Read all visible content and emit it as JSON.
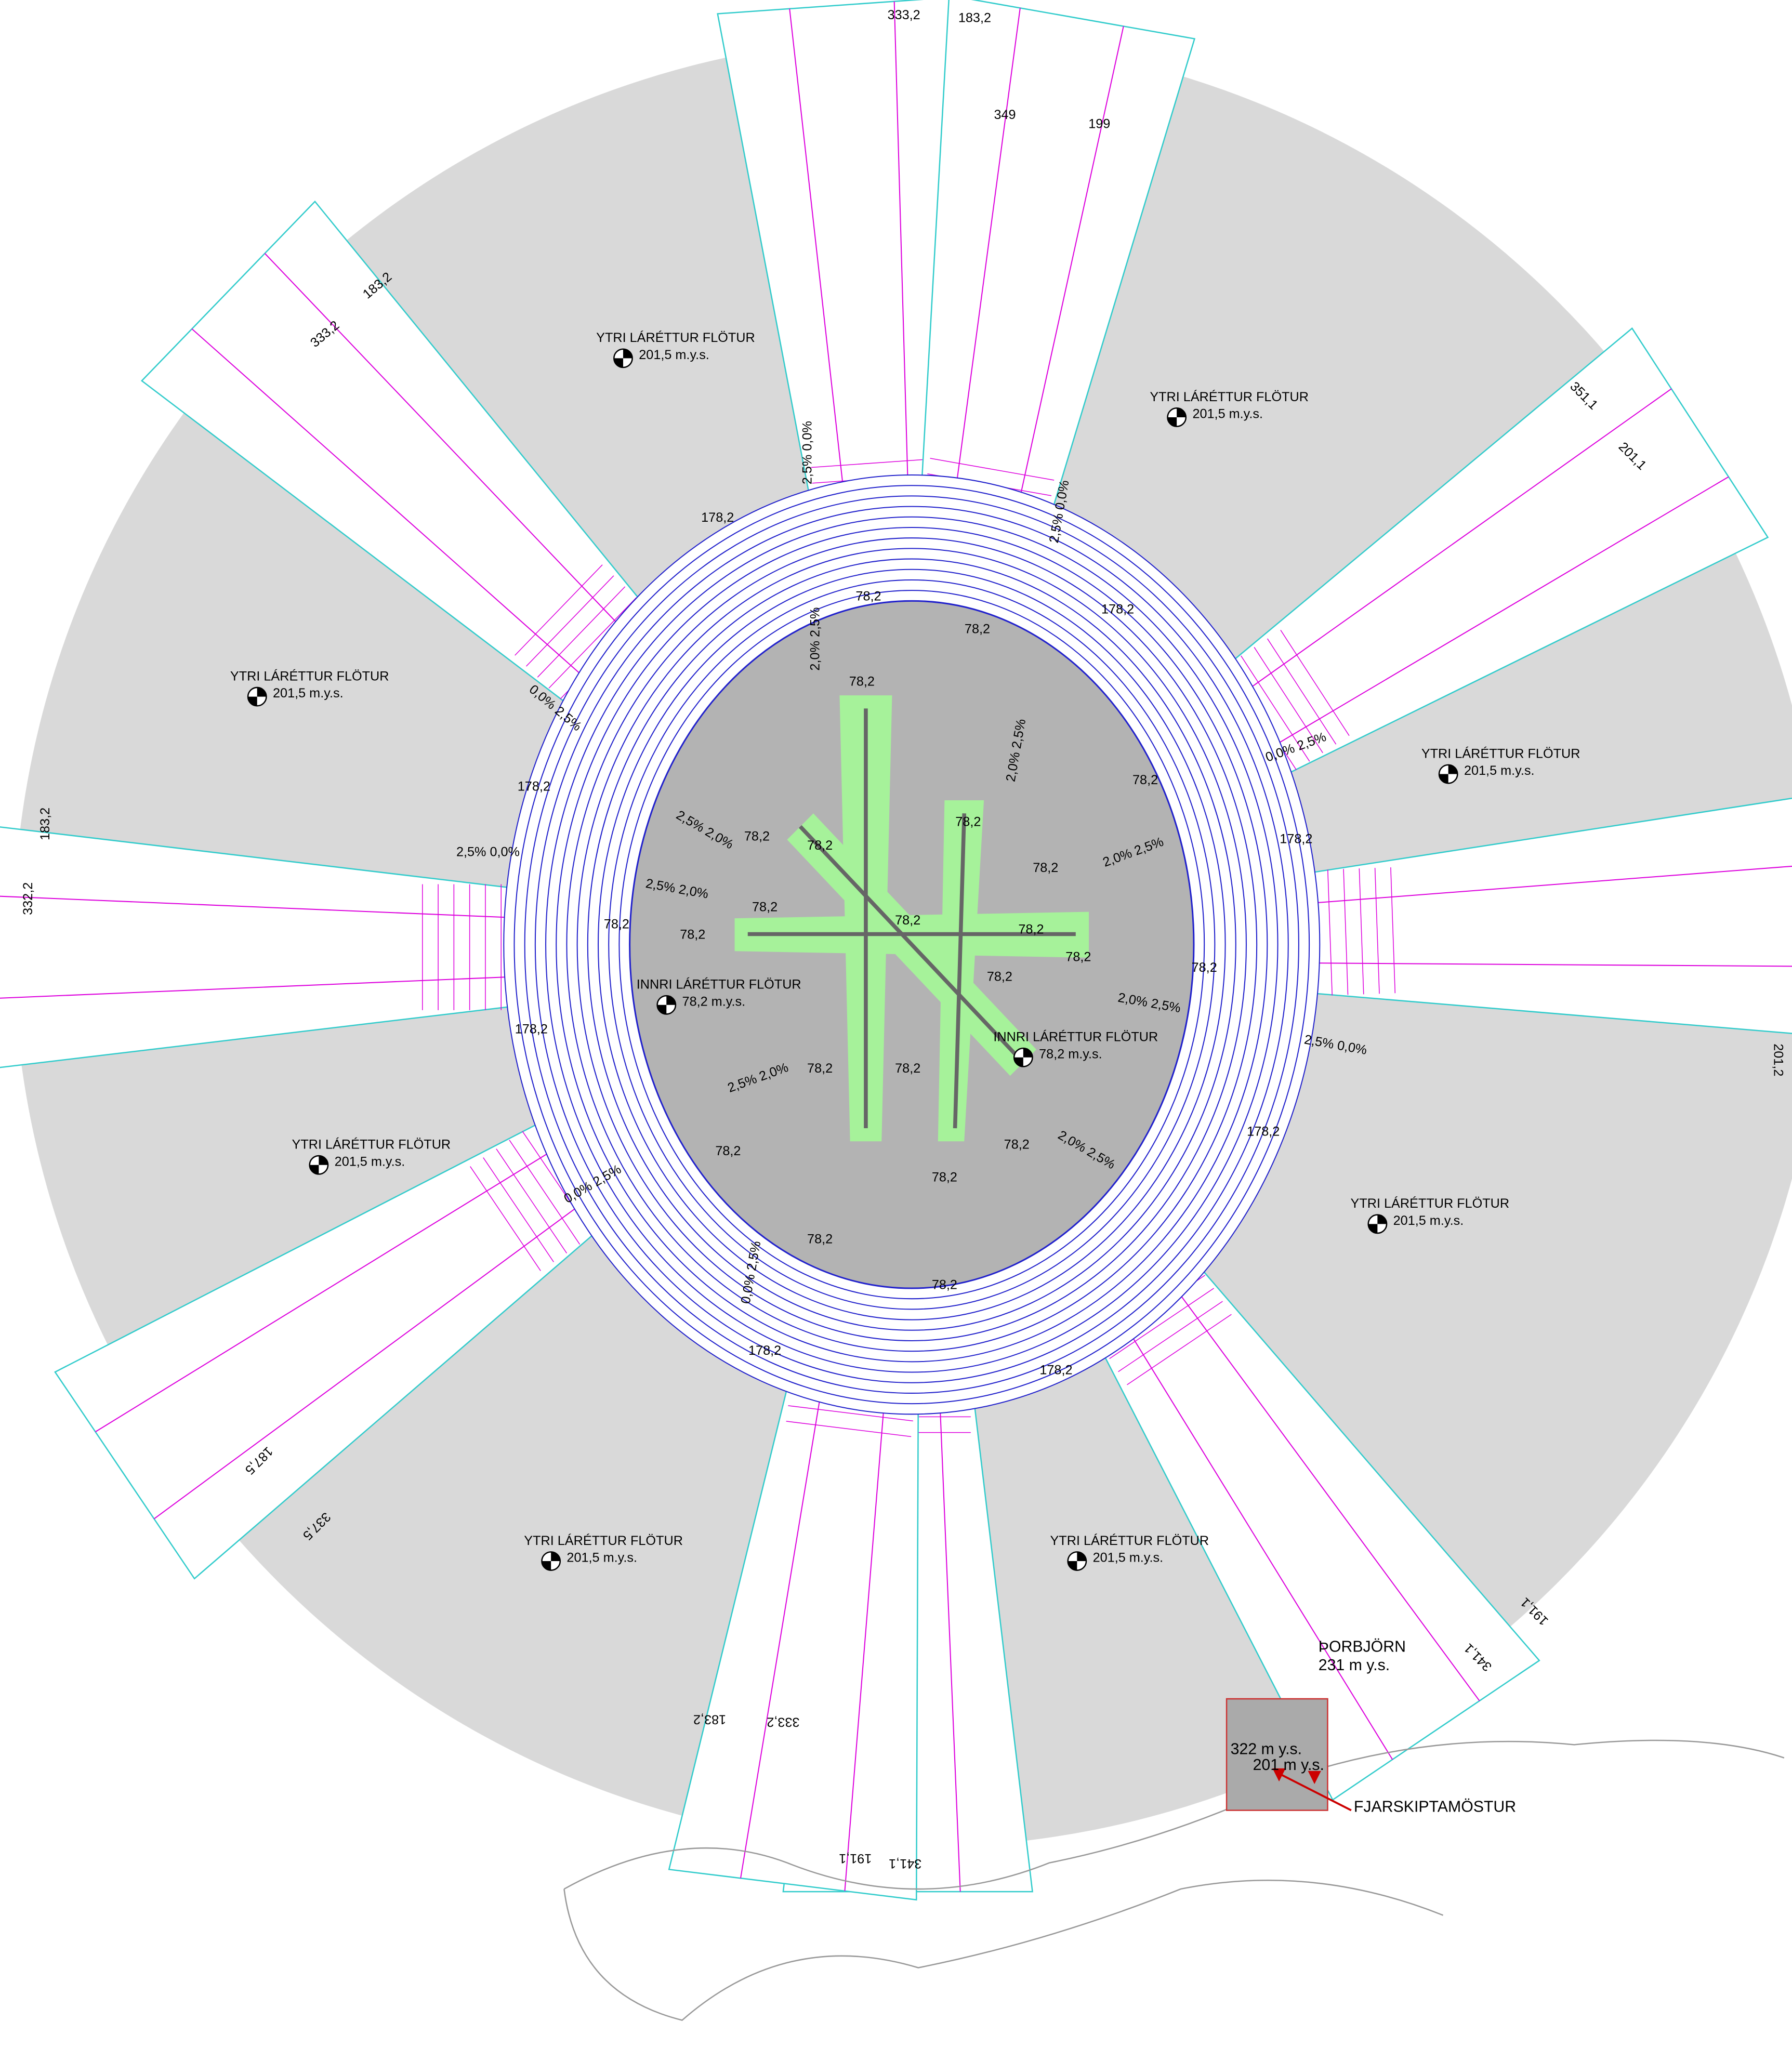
{
  "outer_surfaces": [
    {
      "title": "YTRI LÁRÉTTUR FLÖTUR",
      "elevation": "201,5 m.y.s."
    },
    {
      "title": "YTRI LÁRÉTTUR FLÖTUR",
      "elevation": "201,5 m.y.s."
    },
    {
      "title": "YTRI LÁRÉTTUR FLÖTUR",
      "elevation": "201,5 m.y.s."
    },
    {
      "title": "YTRI LÁRÉTTUR FLÖTUR",
      "elevation": "201,5 m.y.s."
    },
    {
      "title": "YTRI LÁRÉTTUR FLÖTUR",
      "elevation": "201,5 m.y.s."
    },
    {
      "title": "YTRI LÁRÉTTUR FLÖTUR",
      "elevation": "201,5 m.y.s."
    },
    {
      "title": "YTRI LÁRÉTTUR FLÖTUR",
      "elevation": "201,5 m.y.s."
    },
    {
      "title": "YTRI LÁRÉTTUR FLÖTUR",
      "elevation": "201,5 m.y.s."
    }
  ],
  "inner_surfaces": [
    {
      "title": "INNRI LÁRÉTTUR FLÖTUR",
      "elevation": "78,2 m.y.s."
    },
    {
      "title": "INNRI LÁRÉTTUR FLÖTUR",
      "elevation": "78,2 m.y.s."
    }
  ],
  "strip_end_labels": [
    "333,2",
    "183,2",
    "349",
    "199",
    "333,2",
    "183,2",
    "351,1",
    "201,1",
    "332,2",
    "183,2",
    "201,2",
    "191,1",
    "341,1",
    "191,1",
    "341,1",
    "183,2",
    "333,2",
    "187,5",
    "337,5"
  ],
  "contour_labels": [
    "78,2",
    "78,2",
    "78,2",
    "78,2",
    "78,2",
    "78,2",
    "78,2",
    "78,2",
    "78,2",
    "78,2",
    "78,2",
    "78,2",
    "78,2",
    "78,2",
    "78,2",
    "78,2",
    "78,2",
    "78,2",
    "78,2",
    "78,2",
    "78,2",
    "78,2",
    "78,2",
    "178,2",
    "178,2",
    "178,2",
    "178,2",
    "178,2",
    "178,2",
    "178,2",
    "178,2"
  ],
  "slope_labels": [
    "2,5% 0,0%",
    "2,5% 0,0%",
    "0,0% 2,5%",
    "0,0% 2,5%",
    "2,5% 0,0%",
    "2,5% 0,0%",
    "0,0% 2,5%",
    "0,0% 2,5%",
    "2,0% 2,5%",
    "2,0% 2,5%",
    "2,5% 2,0%",
    "2,5% 2,0%",
    "2,0% 2,5%",
    "2,0% 2,5%",
    "2,5% 2,0%",
    "2,0% 2,5%"
  ],
  "landmarks": {
    "peak": "ÞORBJÖRN",
    "peak_elevation": "231 m y.s.",
    "area_elevation": "322 m y.s.",
    "mast_elevation": "201 m y.s.",
    "mast": "FJARSKIPTAMÖSTUR"
  }
}
